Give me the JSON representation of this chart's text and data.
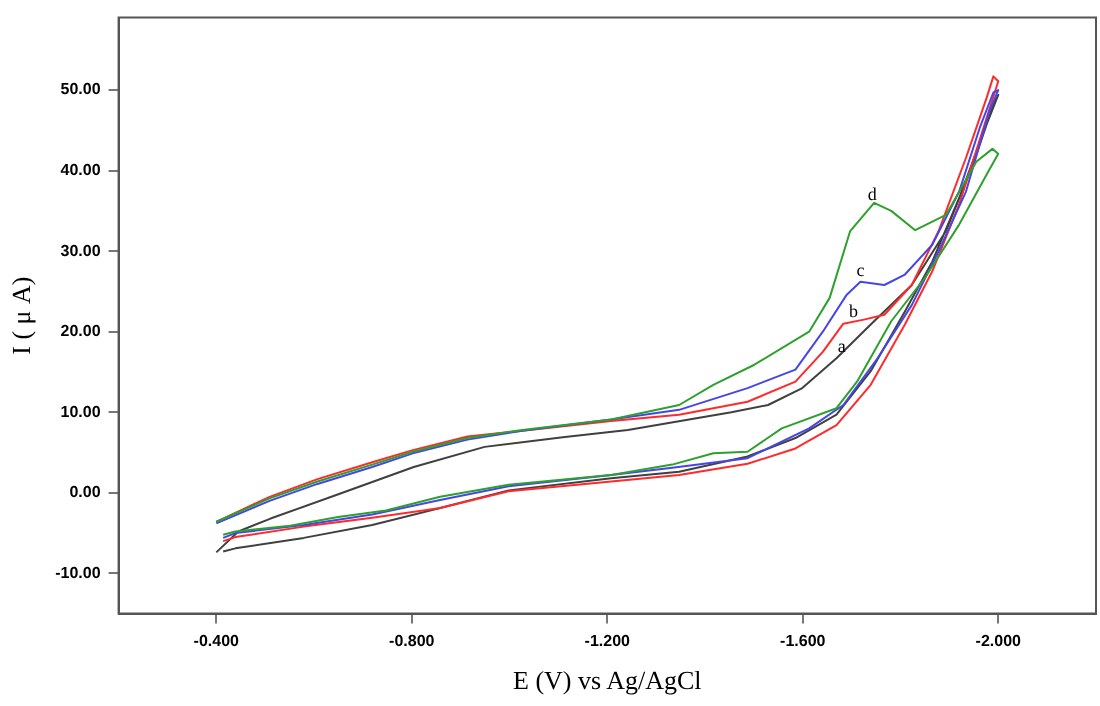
{
  "chart_data": {
    "type": "line",
    "xlabel": "E (V) vs Ag/AgCl",
    "ylabel": "I ( μ A)",
    "xlim": [
      -0.2,
      -2.2
    ],
    "ylim": [
      -15,
      59
    ],
    "xticks": [
      {
        "value": -0.4,
        "label": "-0.400"
      },
      {
        "value": -0.8,
        "label": "-0.800"
      },
      {
        "value": -1.2,
        "label": "-1.200"
      },
      {
        "value": -1.6,
        "label": "-1.600"
      },
      {
        "value": -2.0,
        "label": "-2.000"
      }
    ],
    "yticks": [
      {
        "value": -10,
        "label": "-10.00"
      },
      {
        "value": 0,
        "label": "0.00"
      },
      {
        "value": 10,
        "label": "10.00"
      },
      {
        "value": 20,
        "label": "20.00"
      },
      {
        "value": 30,
        "label": "30.00"
      },
      {
        "value": 40,
        "label": "40.00"
      },
      {
        "value": 50,
        "label": "50.00"
      }
    ],
    "grid": false,
    "legend": false,
    "marker": "none",
    "line_style": "solid",
    "series": [
      {
        "color": "#404040",
        "x": [
          -0.4,
          -0.445,
          -0.511,
          -0.644,
          -0.804,
          -0.949,
          -1.109,
          -1.242,
          -1.454,
          -1.529,
          -1.599,
          -1.669,
          -1.739,
          -1.823,
          -1.893,
          -1.948,
          -1.99,
          -2.0,
          -1.976,
          -1.92,
          -1.865,
          -1.809,
          -1.739,
          -1.669,
          -1.585,
          -1.487,
          -1.347,
          -1.208,
          -0.998,
          -0.858,
          -0.719,
          -0.579,
          -0.439,
          -0.414
        ],
        "values": [
          -7.4,
          -4.8,
          -3.2,
          -0.3,
          3.2,
          5.7,
          6.9,
          7.8,
          10.0,
          10.9,
          13.0,
          16.7,
          20.9,
          25.8,
          32.5,
          40.7,
          48.2,
          49.4,
          45.7,
          36.6,
          28.7,
          22.5,
          15.1,
          9.7,
          6.8,
          4.5,
          2.6,
          1.8,
          0.3,
          -1.9,
          -4.0,
          -5.6,
          -6.9,
          -7.3
        ]
      },
      {
        "color": "#ff2a2a",
        "x": [
          -0.4,
          -0.509,
          -0.607,
          -0.719,
          -0.802,
          -0.914,
          -1.026,
          -1.208,
          -1.347,
          -1.487,
          -1.585,
          -1.641,
          -1.683,
          -1.725,
          -1.767,
          -1.823,
          -1.878,
          -1.934,
          -1.976,
          -1.99,
          -2.0,
          -1.976,
          -1.92,
          -1.865,
          -1.809,
          -1.739,
          -1.669,
          -1.585,
          -1.487,
          -1.347,
          -1.208,
          -0.998,
          -0.858,
          -0.719,
          -0.579,
          -0.439,
          -0.414
        ],
        "values": [
          -3.6,
          -0.5,
          1.7,
          3.8,
          5.3,
          7.0,
          7.7,
          8.9,
          9.7,
          11.3,
          13.8,
          17.5,
          21.0,
          21.5,
          22.1,
          25.8,
          32.5,
          41.6,
          49.0,
          51.7,
          51.1,
          46.5,
          35.8,
          27.5,
          20.9,
          13.4,
          8.4,
          5.5,
          3.6,
          2.2,
          1.4,
          0.2,
          -1.9,
          -3.1,
          -4.2,
          -5.5,
          -6.0
        ]
      },
      {
        "color": "#4646e6",
        "x": [
          -0.4,
          -0.509,
          -0.607,
          -0.719,
          -0.802,
          -0.914,
          -1.026,
          -1.208,
          -1.347,
          -1.487,
          -1.585,
          -1.641,
          -1.69,
          -1.718,
          -1.767,
          -1.809,
          -1.865,
          -1.92,
          -1.962,
          -1.99,
          -2.0,
          -1.982,
          -1.934,
          -1.878,
          -1.823,
          -1.753,
          -1.683,
          -1.613,
          -1.487,
          -1.333,
          -1.208,
          -0.998,
          -0.858,
          -0.719,
          -0.579,
          -0.439,
          -0.414
        ],
        "values": [
          -3.8,
          -1.0,
          1.1,
          3.2,
          4.9,
          6.6,
          7.7,
          9.1,
          10.3,
          13.0,
          15.3,
          20.0,
          24.6,
          26.2,
          25.8,
          27.1,
          30.8,
          37.4,
          45.3,
          49.7,
          50.0,
          47.4,
          37.4,
          30.0,
          23.3,
          16.7,
          10.9,
          8.0,
          4.3,
          3.1,
          2.2,
          0.8,
          -0.9,
          -2.7,
          -4.0,
          -5.0,
          -5.6
        ]
      },
      {
        "color": "#2ea02e",
        "x": [
          -0.4,
          -0.509,
          -0.607,
          -0.719,
          -0.802,
          -0.914,
          -1.026,
          -1.208,
          -1.347,
          -1.417,
          -1.501,
          -1.613,
          -1.655,
          -1.697,
          -1.746,
          -1.781,
          -1.83,
          -1.893,
          -1.955,
          -1.988,
          -2.0,
          -1.976,
          -1.92,
          -1.85,
          -1.781,
          -1.711,
          -1.669,
          -1.557,
          -1.487,
          -1.417,
          -1.333,
          -1.208,
          -0.998,
          -0.858,
          -0.747,
          -0.649,
          -0.551,
          -0.439,
          -0.414
        ],
        "values": [
          -3.6,
          -0.7,
          1.4,
          3.5,
          5.1,
          6.8,
          7.8,
          9.1,
          10.9,
          13.4,
          15.9,
          20.0,
          24.2,
          32.5,
          36.0,
          35.0,
          32.6,
          34.5,
          41.1,
          42.7,
          42.1,
          39.5,
          33.3,
          26.7,
          21.3,
          13.8,
          10.5,
          8.0,
          5.1,
          4.9,
          3.5,
          2.2,
          1.0,
          -0.5,
          -2.2,
          -3.0,
          -4.1,
          -4.8,
          -5.2
        ]
      }
    ],
    "annotations": [
      {
        "text": "a",
        "x": -1.68,
        "y": 18.1
      },
      {
        "text": "b",
        "x": -1.704,
        "y": 22.4
      },
      {
        "text": "c",
        "x": -1.718,
        "y": 27.5
      },
      {
        "text": "d",
        "x": -1.742,
        "y": 37.0
      }
    ]
  }
}
